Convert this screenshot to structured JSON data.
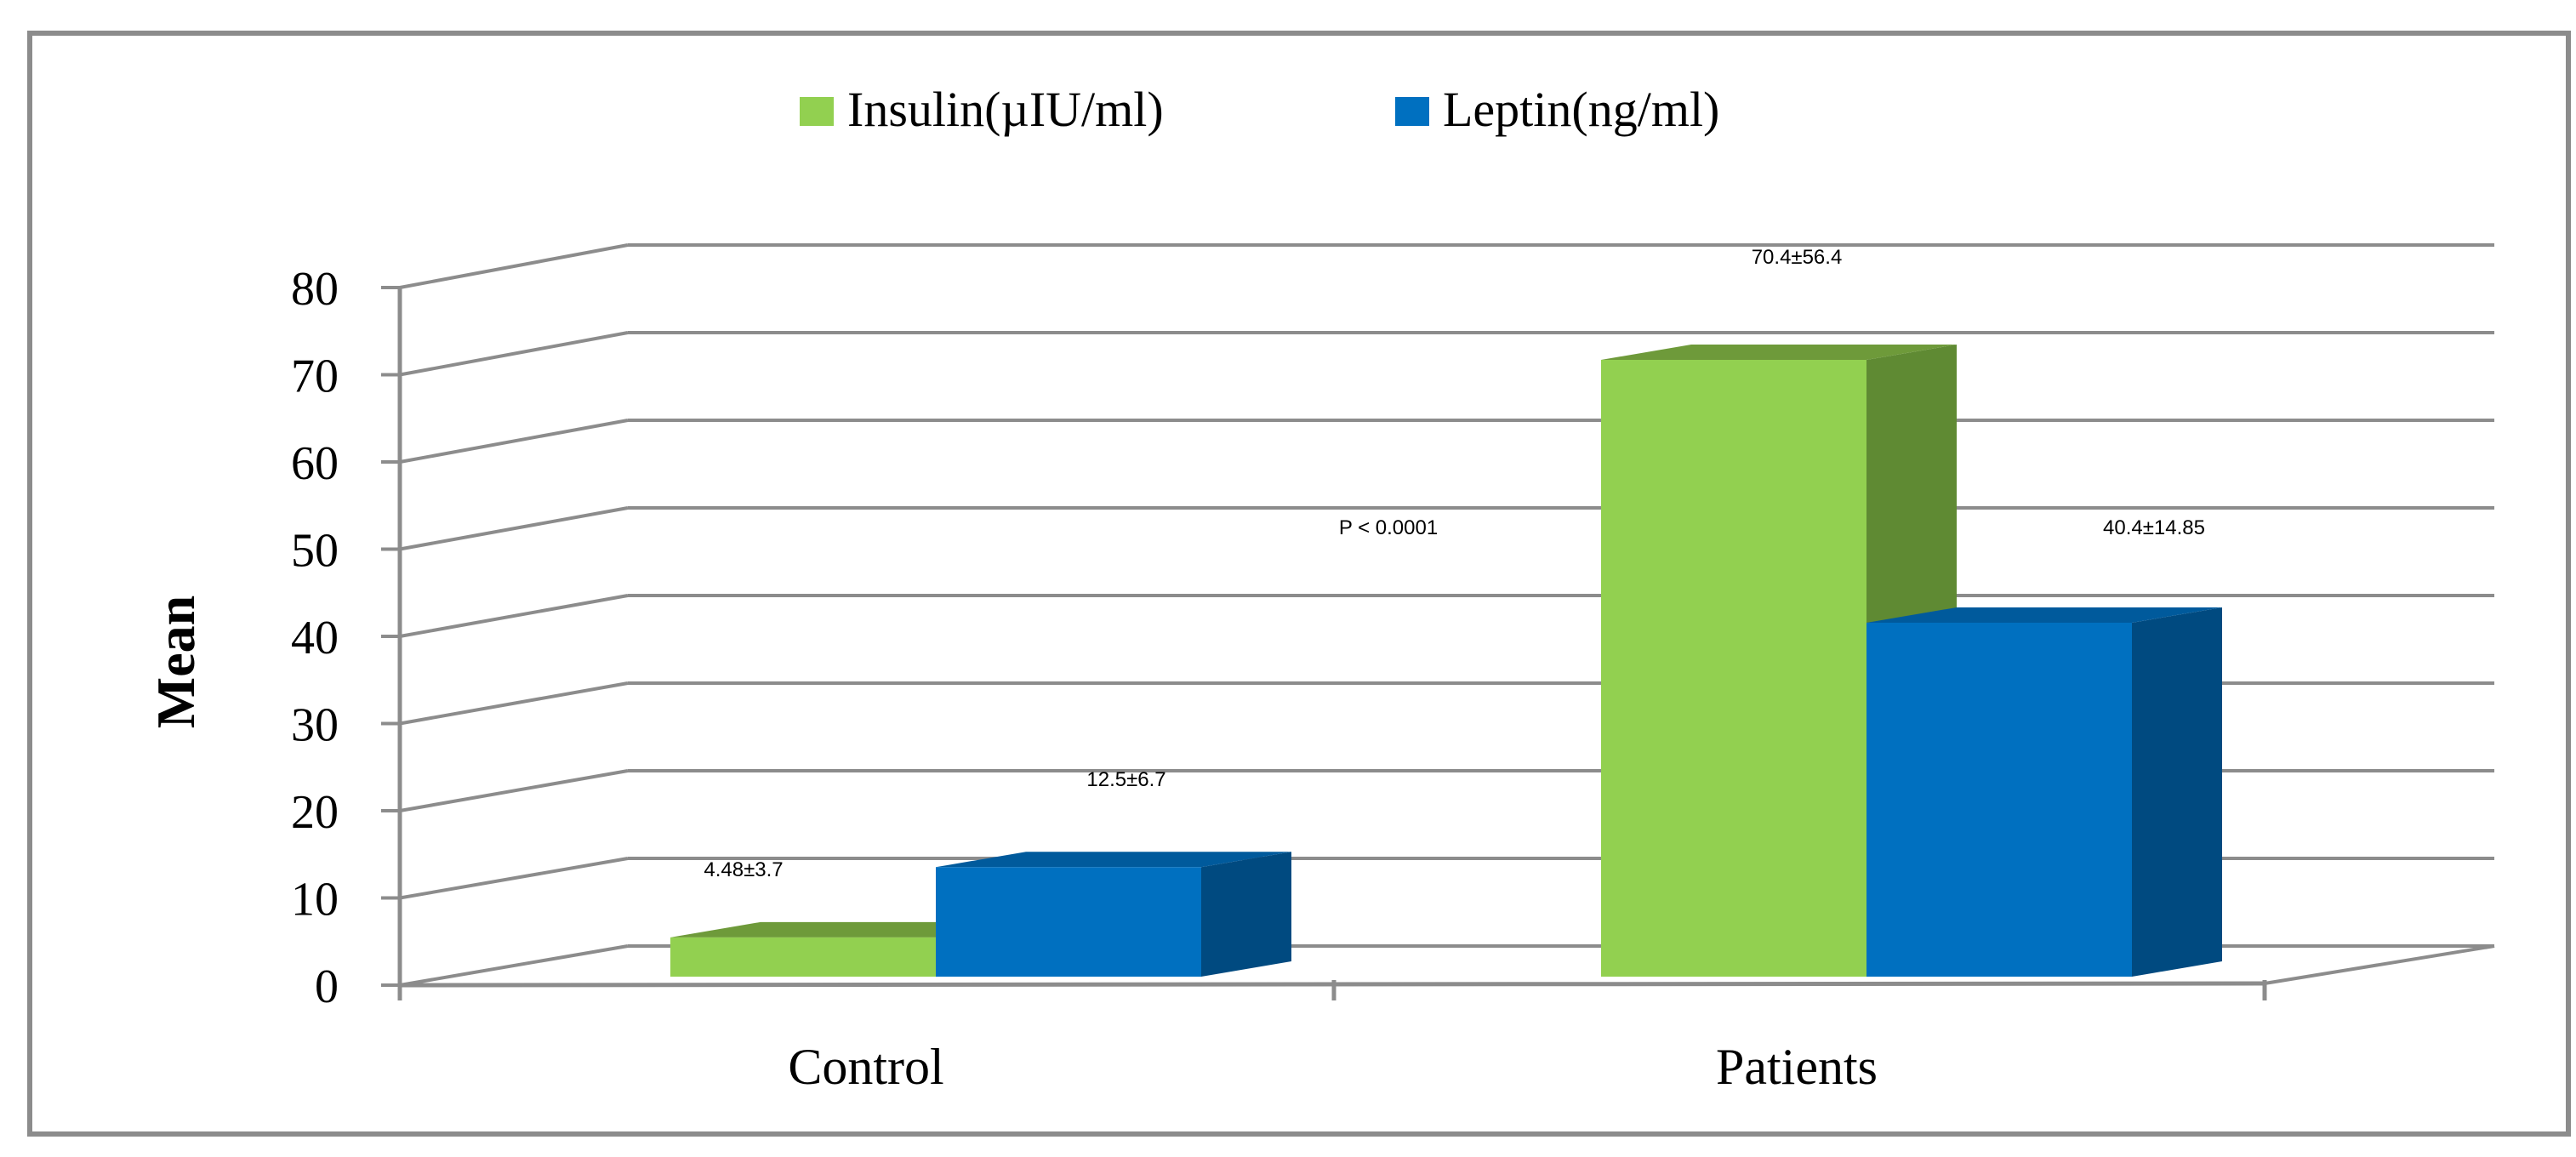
{
  "chart_data": {
    "type": "bar",
    "title": "",
    "xlabel": "",
    "ylabel": "Mean",
    "ylim": [
      0,
      80
    ],
    "yticks": [
      0,
      10,
      20,
      30,
      40,
      50,
      60,
      70,
      80
    ],
    "categories": [
      "Control",
      "Patients"
    ],
    "series": [
      {
        "name": "Insulin(µIU/ml)",
        "values": [
          4.48,
          70.4
        ],
        "labels": [
          "4.48±3.7",
          "70.4±56.4"
        ]
      },
      {
        "name": "Leptin(ng/ml)",
        "values": [
          12.5,
          40.4
        ],
        "labels": [
          "12.5±6.7",
          "40.4±14.85"
        ]
      }
    ],
    "annotations": [
      "P < 0.0001"
    ],
    "grid": true,
    "legend": "top-center",
    "three_d": true,
    "colors": {
      "insulin_front": "#92d050",
      "insulin_top": "#6e9a3a",
      "insulin_side": "#5f8a33",
      "leptin_front": "#0070c0",
      "leptin_top": "#005a9c",
      "leptin_side": "#004a80",
      "grid": "#8c8c8c"
    }
  }
}
